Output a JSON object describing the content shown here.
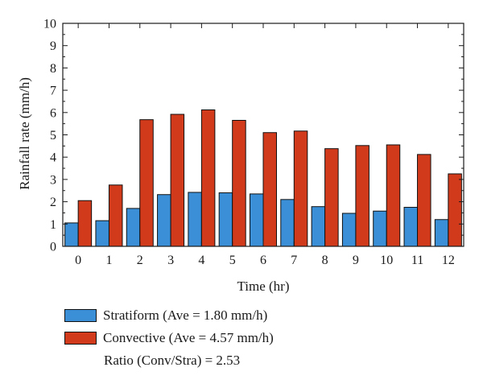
{
  "colors": {
    "stratiform": "#3a8fd6",
    "convective": "#d23a1c",
    "axis": "#1a1a1a"
  },
  "legend": {
    "stratiform_label": "Stratiform (Ave = 1.80 mm/h)",
    "convective_label": "Convective (Ave = 4.57 mm/h)",
    "ratio_text": "Ratio (Conv/Stra) = 2.53"
  },
  "chart_data": {
    "type": "bar",
    "categories": [
      "0",
      "1",
      "2",
      "3",
      "4",
      "5",
      "6",
      "7",
      "8",
      "9",
      "10",
      "11",
      "12"
    ],
    "series": [
      {
        "name": "Stratiform (Ave = 1.80 mm/h)",
        "color": "#3a8fd6",
        "values": [
          1.05,
          1.15,
          1.7,
          2.32,
          2.42,
          2.4,
          2.35,
          2.1,
          1.78,
          1.48,
          1.58,
          1.75,
          1.2
        ]
      },
      {
        "name": "Convective (Ave = 4.57 mm/h)",
        "color": "#d23a1c",
        "values": [
          2.05,
          2.75,
          5.68,
          5.92,
          6.12,
          5.65,
          5.1,
          5.17,
          4.38,
          4.52,
          4.55,
          4.12,
          3.25
        ]
      }
    ],
    "title": "",
    "xlabel": "Time (hr)",
    "ylabel": "Rainfall rate (mm/h)",
    "ylim": [
      0,
      10
    ],
    "yticks": [
      "0",
      "1",
      "2",
      "3",
      "4",
      "5",
      "6",
      "7",
      "8",
      "9",
      "10"
    ],
    "grid": false,
    "legend_position": "bottom"
  }
}
